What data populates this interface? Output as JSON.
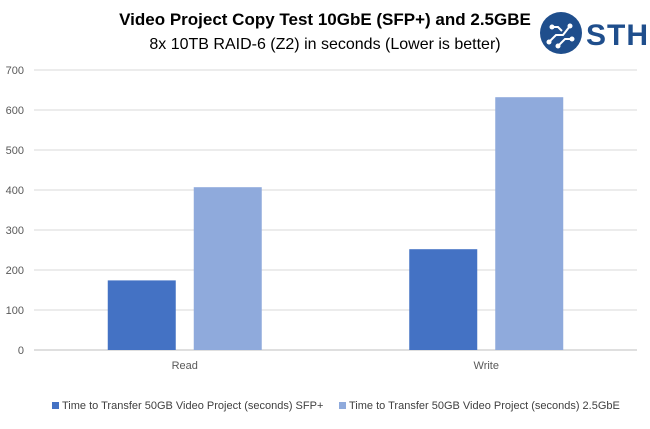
{
  "chart_data": {
    "type": "bar",
    "title": "Video Project Copy Test 10GbE (SFP+) and 2.5GBE",
    "subtitle": "8x 10TB RAID-6 (Z2) in seconds (Lower is better)",
    "categories": [
      "Read",
      "Write"
    ],
    "series": [
      {
        "name": "Time to Transfer 50GB Video Project (seconds) SFP+",
        "values": [
          174,
          252
        ],
        "color": "#4472c4"
      },
      {
        "name": "Time to Transfer 50GB Video Project (seconds) 2.5GbE",
        "values": [
          407,
          632
        ],
        "color": "#8faadc"
      }
    ],
    "ylim": [
      0,
      700
    ],
    "yticks": [
      0,
      100,
      200,
      300,
      400,
      500,
      600,
      700
    ],
    "grid": true,
    "legend": "bottom"
  },
  "logo": {
    "text": "STH",
    "icon": "circuit-globe-icon",
    "color": "#1f4e8c"
  }
}
